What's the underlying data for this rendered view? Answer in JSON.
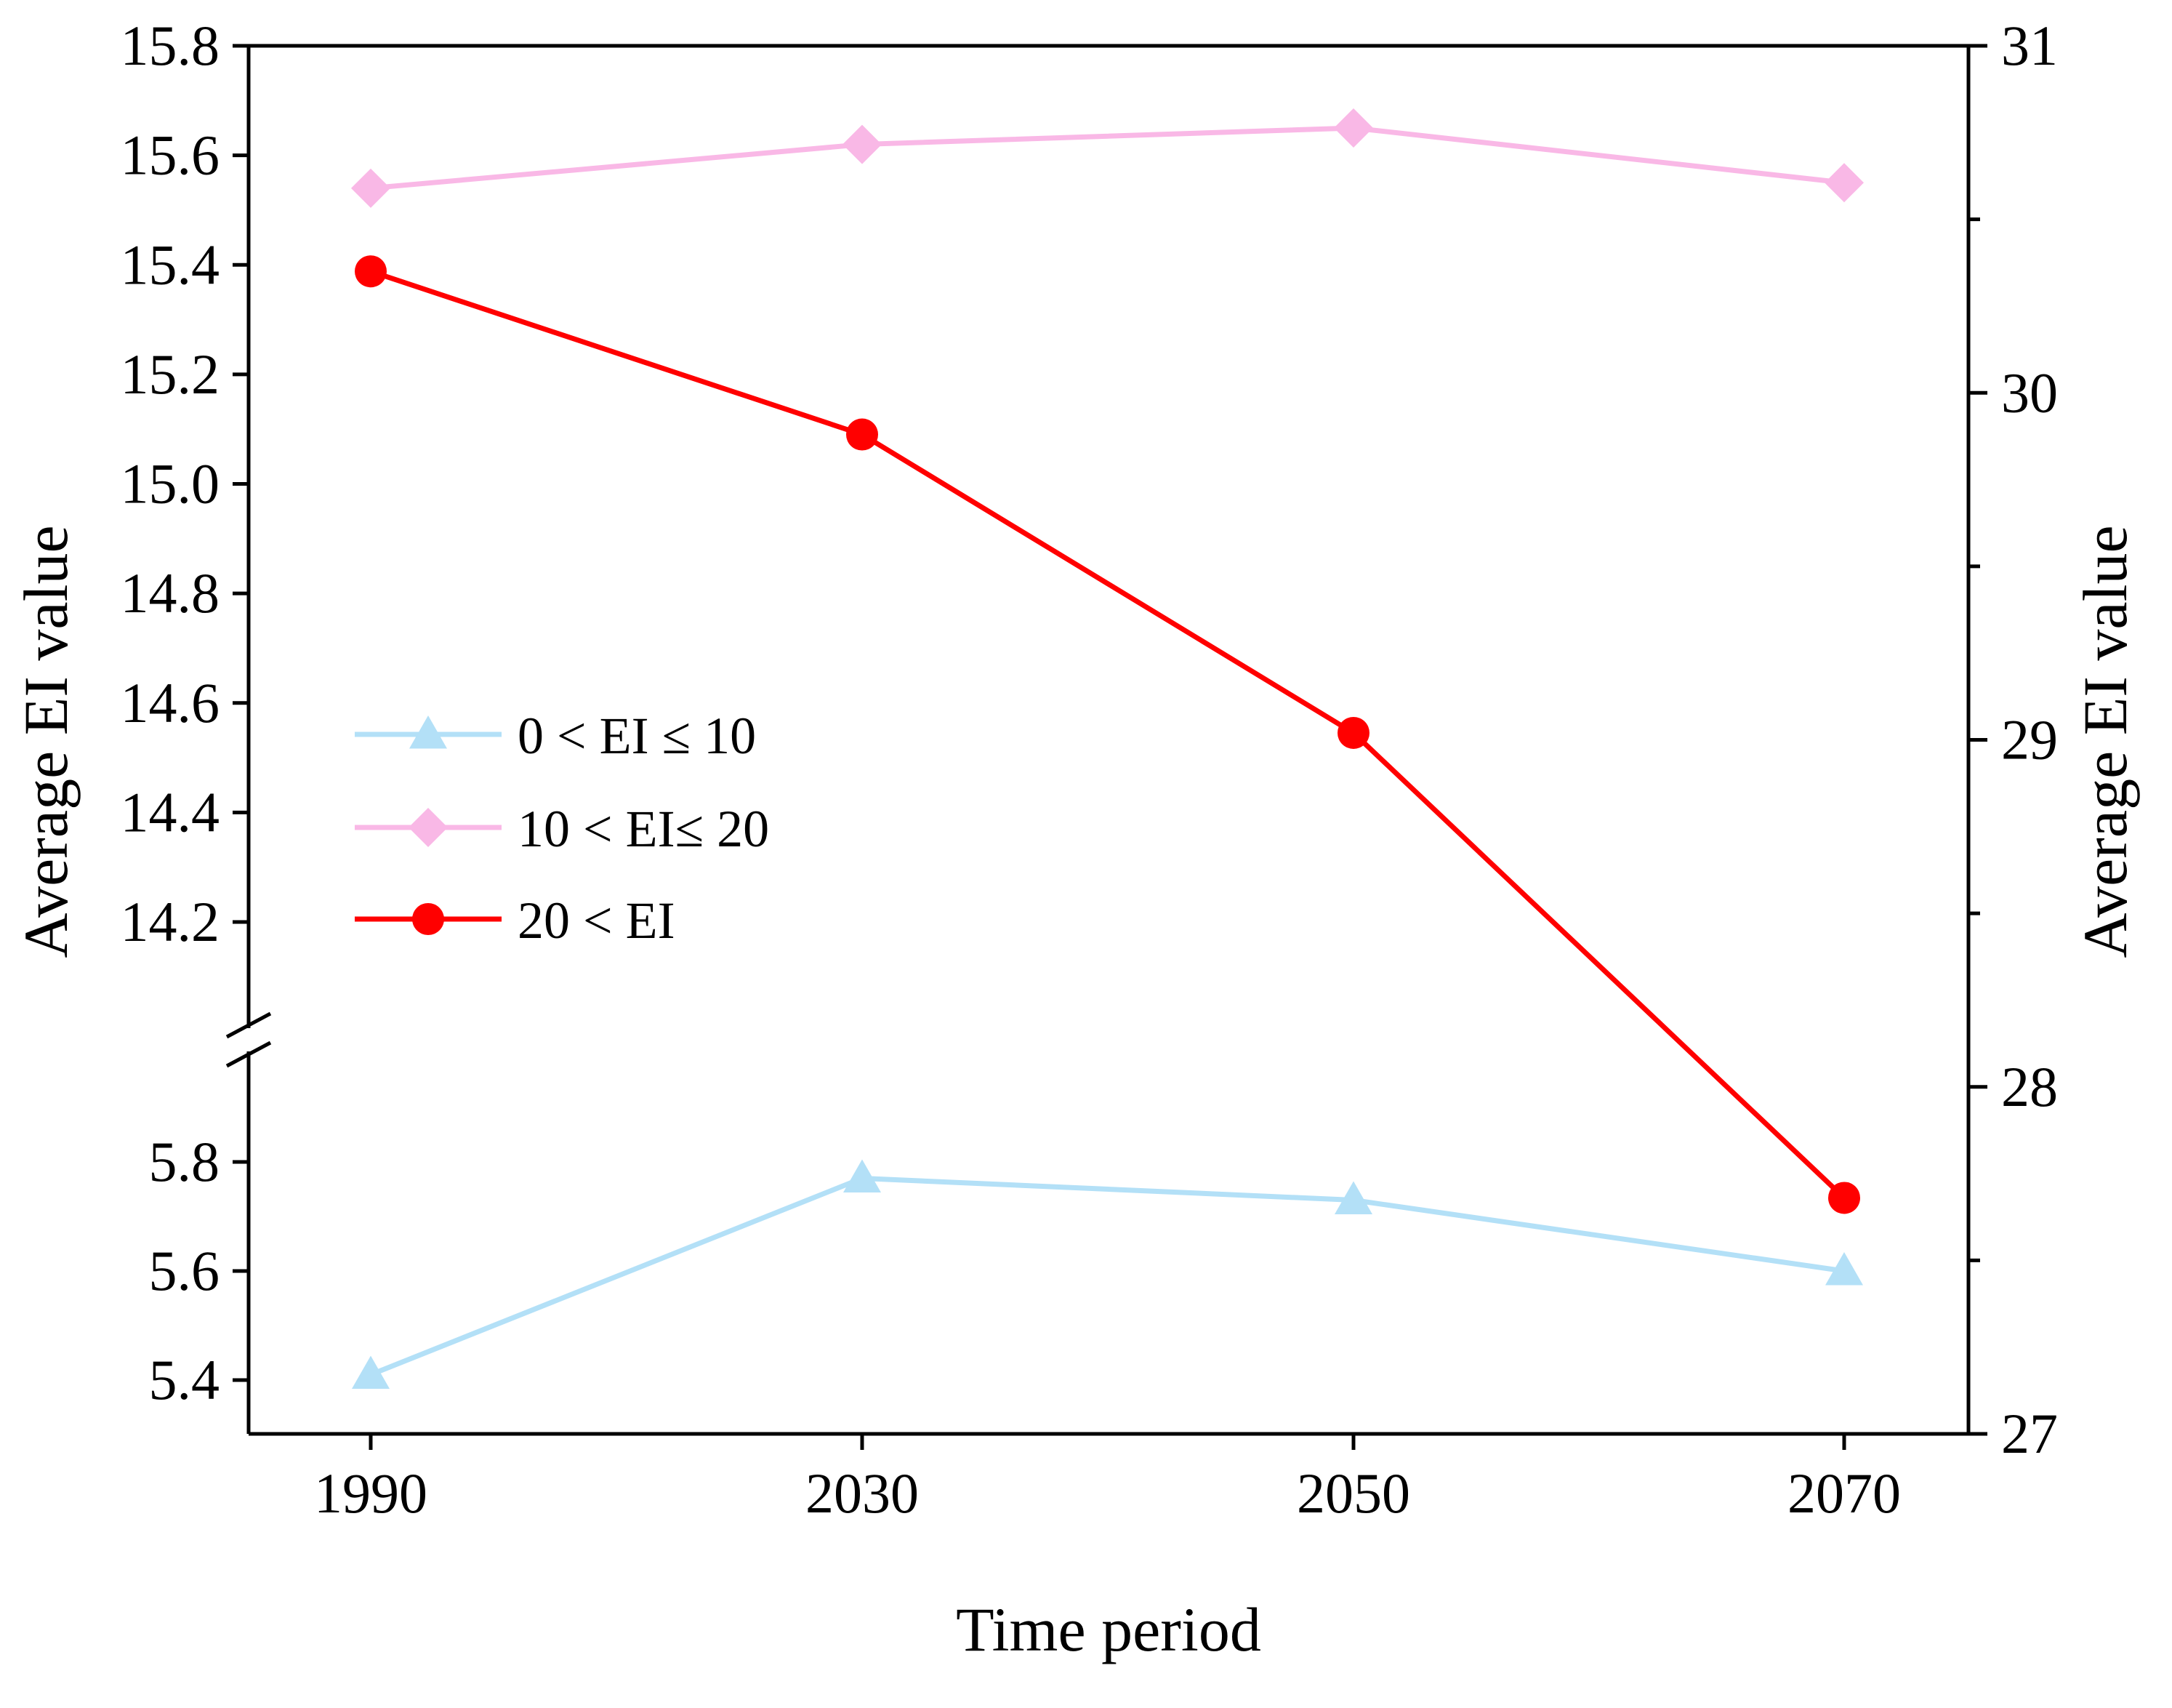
{
  "chart_data": {
    "type": "line",
    "title": "",
    "xlabel": "Time period",
    "ylabel_left": "Average EI value",
    "ylabel_right": "Average EI value",
    "categories": [
      "1990",
      "2030",
      "2050",
      "2070"
    ],
    "left_axis": {
      "broken": true,
      "lower_range": [
        5.3,
        5.95
      ],
      "upper_range": [
        14.0,
        15.8
      ],
      "lower_ticks": [
        "5.4",
        "5.6",
        "5.8"
      ],
      "upper_ticks": [
        "14.2",
        "14.4",
        "14.6",
        "14.8",
        "15.0",
        "15.2",
        "15.4",
        "15.6",
        "15.8"
      ]
    },
    "right_axis": {
      "range": [
        27,
        31
      ],
      "ticks": [
        "27",
        "28",
        "29",
        "30",
        "31"
      ]
    },
    "series": [
      {
        "name": "0 < EI ≤ 10",
        "axis": "left",
        "color": "#b3e0f7",
        "marker": "triangle",
        "values": [
          5.41,
          5.77,
          5.73,
          5.6
        ]
      },
      {
        "name": "10 < EI≤ 20",
        "axis": "left",
        "color": "#f9b8e6",
        "marker": "diamond",
        "values": [
          15.54,
          15.62,
          15.65,
          15.55
        ]
      },
      {
        "name": "20 < EI",
        "axis": "right",
        "color": "#ff0000",
        "marker": "circle",
        "values": [
          30.35,
          29.88,
          29.02,
          27.68
        ]
      }
    ],
    "legend": {
      "position": "center-left",
      "labels": [
        "0 < EI ≤ 10",
        "10 < EI≤ 20",
        "20 < EI"
      ]
    }
  }
}
